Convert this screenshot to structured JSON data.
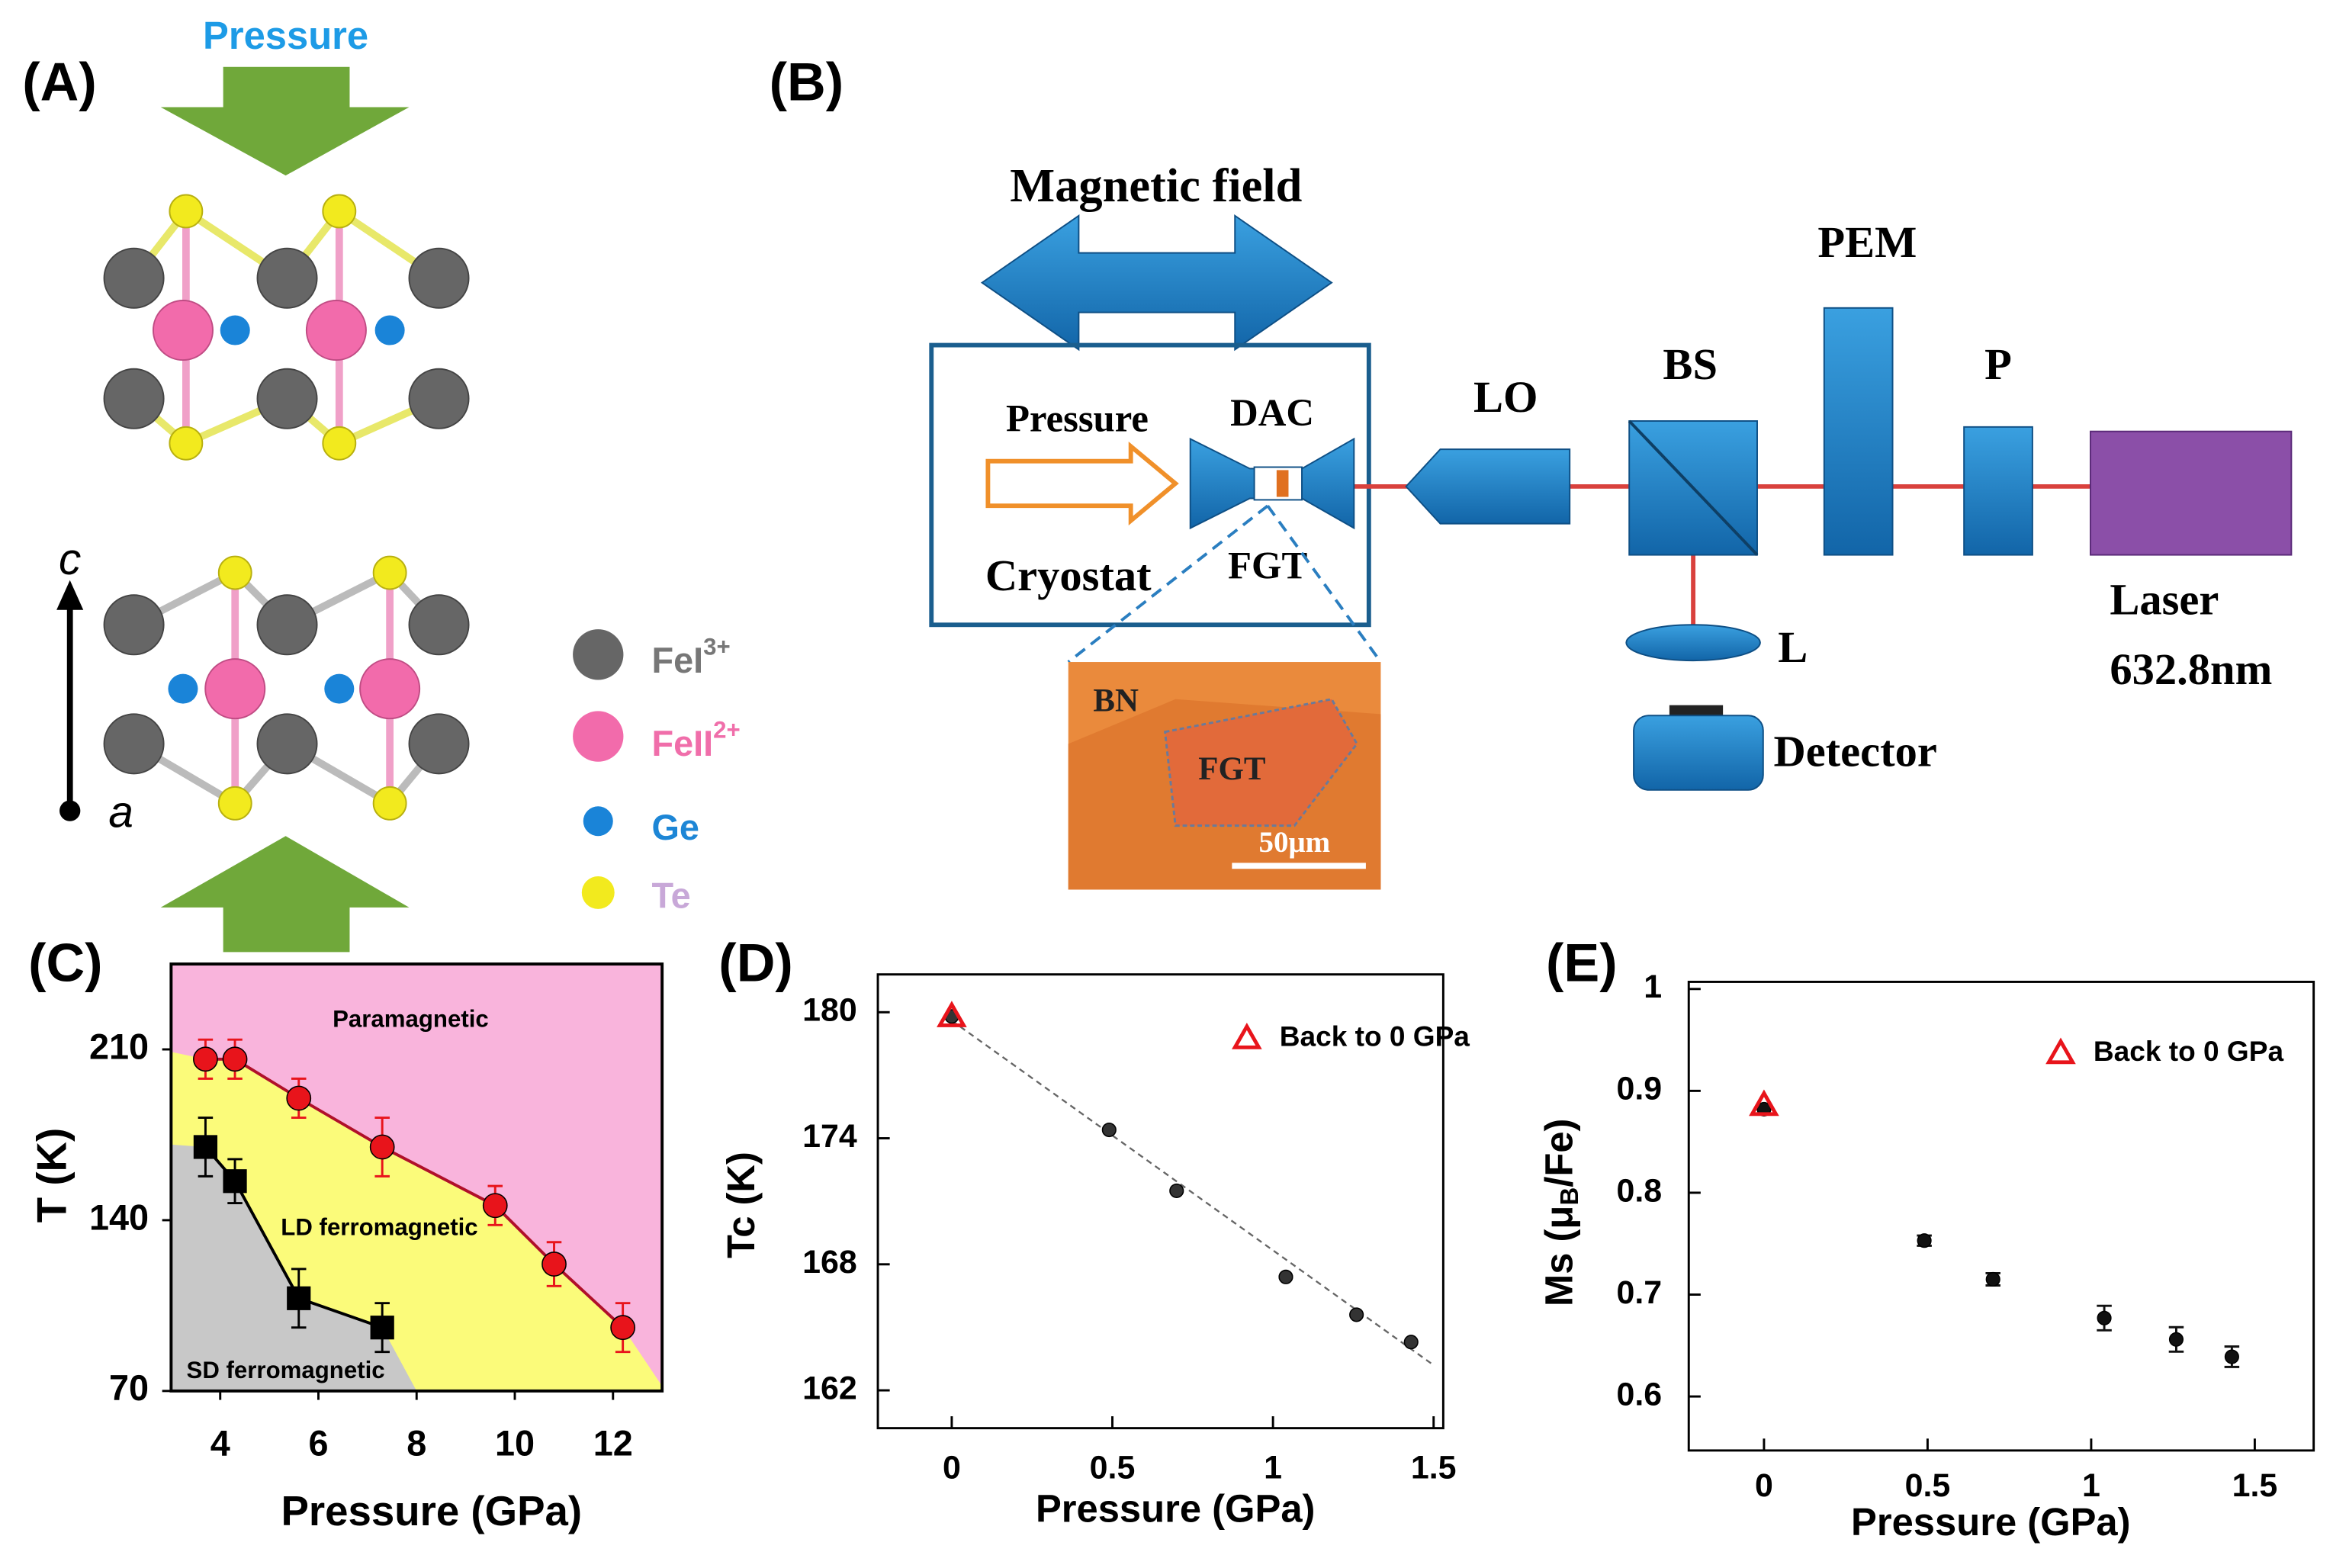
{
  "panels": {
    "labels": [
      "(A)",
      "(B)",
      "(C)",
      "(D)",
      "(E)"
    ]
  },
  "panel_a": {
    "pressure": "Pressure",
    "axis_c": "c",
    "axis_a": "a",
    "legend": [
      {
        "text": "FeI",
        "sup": "3+"
      },
      {
        "text": "FeII",
        "sup": "2+"
      },
      {
        "text": "Ge"
      },
      {
        "text": "Te"
      }
    ]
  },
  "panel_b": {
    "magnetic_field": "Magnetic field",
    "pressure": "Pressure",
    "dac": "DAC",
    "cryostat": "Cryostat",
    "fgt": "FGT",
    "lo": "LO",
    "bs": "BS",
    "pem": "PEM",
    "p": "P",
    "laser": "Laser",
    "wavelength": "632.8nm",
    "lens": "L",
    "detector": "Detector",
    "inset": {
      "bn": "BN",
      "fgt": "FGT",
      "scale": "50μm"
    }
  },
  "chart_data": [
    {
      "type": "scatter",
      "xlabel": "Pressure (GPa)",
      "ylabel": "T (K)",
      "xlim": [
        3,
        13
      ],
      "ylim": [
        70,
        245
      ],
      "xticks": [
        4,
        6,
        8,
        10,
        12
      ],
      "yticks": [
        70,
        140,
        210
      ],
      "regions": [
        {
          "label": "Paramagnetic",
          "color": "#f9b4dc",
          "x": [
            3,
            13,
            13,
            3
          ],
          "y": [
            245,
            245,
            70,
            70
          ]
        },
        {
          "label": "LD ferromagnetic",
          "color": "#fbfb7a",
          "x": [
            3,
            3.7,
            4.3,
            5.6,
            7.3,
            9.6,
            10.8,
            12.2,
            13,
            13,
            3
          ],
          "y": [
            209,
            206,
            206,
            190,
            170,
            146,
            122,
            96,
            72,
            70,
            70
          ]
        },
        {
          "label": "SD ferromagnetic",
          "color": "#c8c8c8",
          "x": [
            3,
            3.7,
            4.3,
            5.6,
            7.3,
            8,
            3
          ],
          "y": [
            171,
            170,
            156,
            108,
            96,
            70,
            70
          ]
        }
      ],
      "series": [
        {
          "color": "#e8141b",
          "line_color": "#b0102a",
          "marker": "circle",
          "x": [
            3.7,
            4.3,
            5.6,
            7.3,
            9.6,
            10.8,
            12.2
          ],
          "values": [
            206,
            206,
            190,
            170,
            146,
            122,
            96
          ],
          "errors": [
            8,
            8,
            8,
            12,
            8,
            9,
            10
          ]
        },
        {
          "color": "#000000",
          "line_color": "#000000",
          "marker": "square",
          "x": [
            3.7,
            4.3,
            5.6,
            7.3
          ],
          "values": [
            170,
            156,
            108,
            96
          ],
          "errors": [
            12,
            9,
            12,
            10
          ]
        }
      ]
    },
    {
      "type": "scatter",
      "xlabel": "Pressure (GPa)",
      "ylabel": "Tc (K)",
      "xlim": [
        -0.23,
        1.53
      ],
      "ylim": [
        160.2,
        181.8
      ],
      "xticks": [
        0,
        0.5,
        1,
        1.5
      ],
      "yticks": [
        162,
        168,
        174,
        180
      ],
      "series": [
        {
          "color": "#555555",
          "line_color": "#666666",
          "dashed": true,
          "x": [
            0,
            1.5
          ],
          "values": [
            179.6,
            163.2
          ]
        },
        {
          "color": "#333333",
          "marker": "circle",
          "x": [
            0,
            0.49,
            0.7,
            1.04,
            1.26,
            1.43
          ],
          "values": [
            179.8,
            174.4,
            171.5,
            167.4,
            165.6,
            164.3
          ]
        },
        {
          "name": "Back to 0 GPa",
          "color": "#e8141b",
          "marker": "triangle",
          "x": [
            0
          ],
          "values": [
            179.8
          ]
        }
      ]
    },
    {
      "type": "scatter",
      "xlabel": "Pressure (GPa)",
      "ylabel": [
        "Ms (μ",
        "B",
        "/Fe)"
      ],
      "xlim": [
        -0.23,
        1.68
      ],
      "ylim": [
        0.547,
        1.007
      ],
      "xticks": [
        0,
        0.5,
        1,
        1.5
      ],
      "yticks": [
        0.6,
        0.7,
        0.8,
        0.9,
        1
      ],
      "series": [
        {
          "color": "#111111",
          "marker": "circle",
          "x": [
            0,
            0.49,
            0.7,
            1.04,
            1.26,
            1.43
          ],
          "values": [
            0.882,
            0.753,
            0.715,
            0.677,
            0.656,
            0.639
          ],
          "errors": [
            0.005,
            0.005,
            0.006,
            0.012,
            0.012,
            0.01
          ]
        },
        {
          "name": "Back to 0 GPa",
          "color": "#e8141b",
          "marker": "triangle",
          "x": [
            0
          ],
          "values": [
            0.886
          ]
        }
      ]
    }
  ]
}
